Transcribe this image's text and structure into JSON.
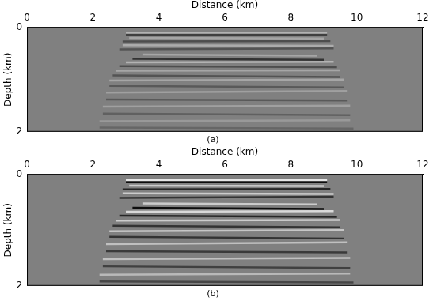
{
  "chart_data": [
    {
      "type": "image",
      "caption": "(a)",
      "x_label": "Distance (km)",
      "y_label": "Depth (km)",
      "xlim": [
        0,
        12
      ],
      "xticks": [
        0,
        2,
        4,
        6,
        8,
        10,
        12
      ],
      "ylim": [
        0,
        2
      ],
      "yticks": [
        0,
        2
      ],
      "grid": false,
      "reflectors": [
        {
          "x": [
            3.0,
            9.1
          ],
          "depth": [
            0.1,
            0.1
          ],
          "amplitude": 0.4
        },
        {
          "x": [
            3.0,
            9.1
          ],
          "depth": [
            0.14,
            0.14
          ],
          "amplitude": -0.5
        },
        {
          "x": [
            3.1,
            9.0
          ],
          "depth": [
            0.2,
            0.21
          ],
          "amplitude": 0.3
        },
        {
          "x": [
            2.9,
            9.2
          ],
          "depth": [
            0.27,
            0.26
          ],
          "amplitude": -0.4
        },
        {
          "x": [
            2.9,
            9.3
          ],
          "depth": [
            0.34,
            0.35
          ],
          "amplitude": 0.35
        },
        {
          "x": [
            2.8,
            9.3
          ],
          "depth": [
            0.42,
            0.4
          ],
          "amplitude": -0.35
        },
        {
          "x": [
            3.5,
            8.8
          ],
          "depth": [
            0.52,
            0.54
          ],
          "amplitude": 0.3
        },
        {
          "x": [
            3.2,
            9.0
          ],
          "depth": [
            0.6,
            0.62
          ],
          "amplitude": -0.6
        },
        {
          "x": [
            3.0,
            9.3
          ],
          "depth": [
            0.67,
            0.66
          ],
          "amplitude": 0.4
        },
        {
          "x": [
            2.8,
            9.4
          ],
          "depth": [
            0.74,
            0.76
          ],
          "amplitude": -0.4
        },
        {
          "x": [
            2.7,
            9.5
          ],
          "depth": [
            0.83,
            0.82
          ],
          "amplitude": 0.3
        },
        {
          "x": [
            2.6,
            9.5
          ],
          "depth": [
            0.92,
            0.95
          ],
          "amplitude": -0.35
        },
        {
          "x": [
            2.5,
            9.6
          ],
          "depth": [
            1.02,
            1.0
          ],
          "amplitude": 0.3
        },
        {
          "x": [
            2.5,
            9.6
          ],
          "depth": [
            1.12,
            1.15
          ],
          "amplitude": -0.3
        },
        {
          "x": [
            2.4,
            9.7
          ],
          "depth": [
            1.25,
            1.22
          ],
          "amplitude": 0.25
        },
        {
          "x": [
            2.4,
            9.7
          ],
          "depth": [
            1.38,
            1.4
          ],
          "amplitude": -0.3
        },
        {
          "x": [
            2.3,
            9.8
          ],
          "depth": [
            1.52,
            1.5
          ],
          "amplitude": 0.25
        },
        {
          "x": [
            2.3,
            9.8
          ],
          "depth": [
            1.65,
            1.68
          ],
          "amplitude": -0.25
        },
        {
          "x": [
            2.2,
            9.8
          ],
          "depth": [
            1.8,
            1.78
          ],
          "amplitude": 0.2
        },
        {
          "x": [
            2.2,
            9.9
          ],
          "depth": [
            1.92,
            1.94
          ],
          "amplitude": -0.2
        }
      ]
    },
    {
      "type": "image",
      "caption": "(b)",
      "x_label": "Distance (km)",
      "y_label": "Depth (km)",
      "xlim": [
        0,
        12
      ],
      "xticks": [
        0,
        2,
        4,
        6,
        8,
        10,
        12
      ],
      "ylim": [
        0,
        2
      ],
      "yticks": [
        0,
        2
      ],
      "grid": false,
      "reflectors": [
        {
          "x": [
            3.0,
            9.1
          ],
          "depth": [
            0.1,
            0.1
          ],
          "amplitude": 0.8
        },
        {
          "x": [
            3.0,
            9.1
          ],
          "depth": [
            0.14,
            0.14
          ],
          "amplitude": -0.9
        },
        {
          "x": [
            3.1,
            9.0
          ],
          "depth": [
            0.2,
            0.21
          ],
          "amplitude": 0.6
        },
        {
          "x": [
            2.9,
            9.2
          ],
          "depth": [
            0.27,
            0.26
          ],
          "amplitude": -0.7
        },
        {
          "x": [
            2.9,
            9.3
          ],
          "depth": [
            0.34,
            0.35
          ],
          "amplitude": 0.6
        },
        {
          "x": [
            2.8,
            9.3
          ],
          "depth": [
            0.42,
            0.4
          ],
          "amplitude": -0.6
        },
        {
          "x": [
            3.5,
            8.8
          ],
          "depth": [
            0.52,
            0.54
          ],
          "amplitude": 0.6
        },
        {
          "x": [
            3.2,
            9.0
          ],
          "depth": [
            0.6,
            0.62
          ],
          "amplitude": -0.9
        },
        {
          "x": [
            3.0,
            9.3
          ],
          "depth": [
            0.67,
            0.66
          ],
          "amplitude": 0.7
        },
        {
          "x": [
            2.8,
            9.4
          ],
          "depth": [
            0.74,
            0.76
          ],
          "amplitude": -0.7
        },
        {
          "x": [
            2.7,
            9.5
          ],
          "depth": [
            0.83,
            0.82
          ],
          "amplitude": 0.6
        },
        {
          "x": [
            2.6,
            9.5
          ],
          "depth": [
            0.92,
            0.95
          ],
          "amplitude": -0.6
        },
        {
          "x": [
            2.5,
            9.6
          ],
          "depth": [
            1.02,
            1.0
          ],
          "amplitude": 0.55
        },
        {
          "x": [
            2.5,
            9.6
          ],
          "depth": [
            1.12,
            1.15
          ],
          "amplitude": -0.6
        },
        {
          "x": [
            2.4,
            9.7
          ],
          "depth": [
            1.25,
            1.22
          ],
          "amplitude": 0.5
        },
        {
          "x": [
            2.4,
            9.7
          ],
          "depth": [
            1.38,
            1.4
          ],
          "amplitude": -0.55
        },
        {
          "x": [
            2.3,
            9.8
          ],
          "depth": [
            1.52,
            1.5
          ],
          "amplitude": 0.5
        },
        {
          "x": [
            2.3,
            9.8
          ],
          "depth": [
            1.65,
            1.68
          ],
          "amplitude": -0.5
        },
        {
          "x": [
            2.2,
            9.8
          ],
          "depth": [
            1.8,
            1.78
          ],
          "amplitude": 0.45
        },
        {
          "x": [
            2.2,
            9.9
          ],
          "depth": [
            1.92,
            1.94
          ],
          "amplitude": -0.45
        }
      ]
    }
  ]
}
